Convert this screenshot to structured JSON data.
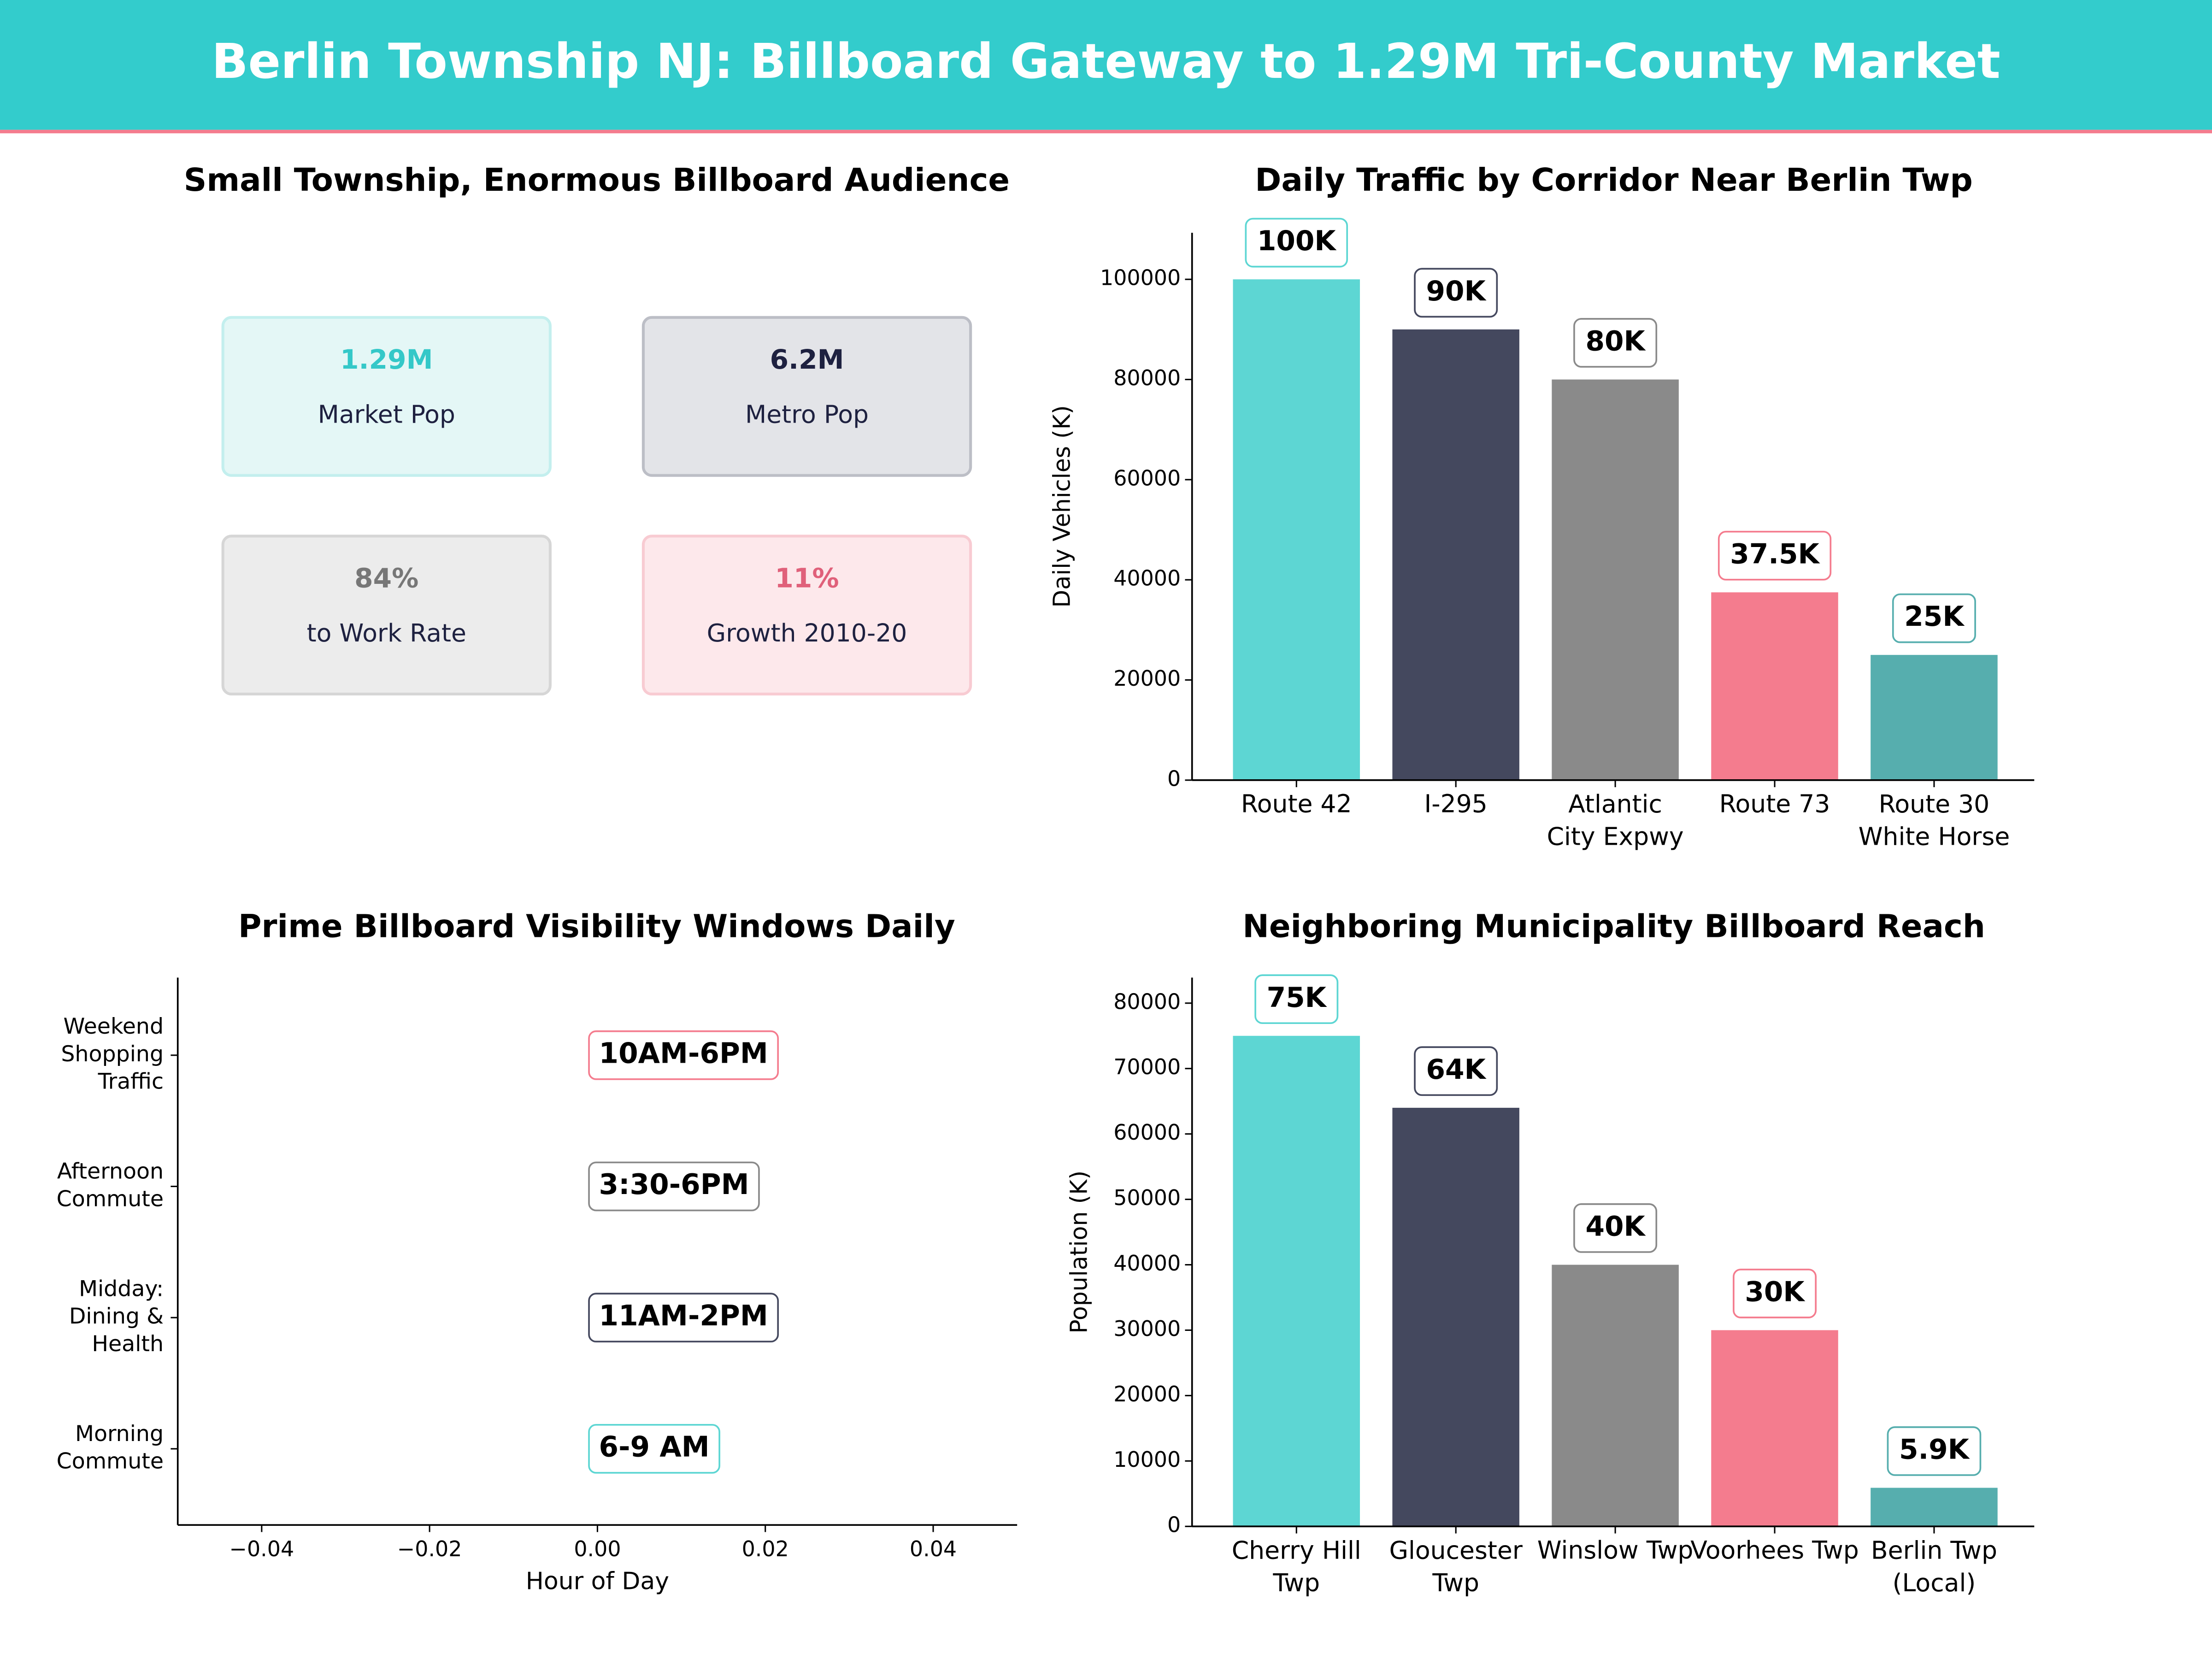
{
  "header": {
    "title": "Berlin Township NJ: Billboard Gateway to 1.29M Tri-County Market"
  },
  "chart_data": [
    {
      "type": "kpi",
      "title": "Small Township, Enormous Billboard Audience",
      "cards": [
        {
          "value": "1.29M",
          "label": "Market Pop",
          "color": "#34c8c8",
          "background": "#e4f7f6",
          "border": "#c3efee"
        },
        {
          "value": "6.2M",
          "label": "Metro Pop",
          "color": "#1e2140",
          "background": "#e3e4e8",
          "border": "#bcbec6"
        },
        {
          "value": "84%",
          "label": "to Work Rate",
          "color": "#777777",
          "background": "#ececec",
          "border": "#d6d6d6"
        },
        {
          "value": "11%",
          "label": "Growth 2010-20",
          "color": "#e0607a",
          "background": "#fde8eb",
          "border": "#f8cbd2"
        }
      ]
    },
    {
      "type": "bar",
      "title": "Daily Traffic by Corridor Near Berlin Twp",
      "ylabel": "Daily Vehicles (K)",
      "categories": [
        "Route 42",
        "I-295",
        "Atlantic\nCity Expwy",
        "Route 73",
        "Route 30\nWhite Horse"
      ],
      "values": [
        100000,
        90000,
        80000,
        37500,
        25000
      ],
      "value_labels": [
        "100K",
        "90K",
        "80K",
        "37.5K",
        "25K"
      ],
      "colors": [
        "#5dd6d3",
        "#44485e",
        "#8a8a8a",
        "#f47c8e",
        "#56aeae"
      ],
      "ylim": [
        0,
        109300
      ],
      "yticks": [
        0,
        20000,
        40000,
        60000,
        80000,
        100000
      ]
    },
    {
      "type": "hbar",
      "title": "Prime Billboard Visibility Windows Daily",
      "xlabel": "Hour of Day",
      "categories": [
        "Morning\nCommute",
        "Midday:\nDining &\nHealth",
        "Afternoon\nCommute",
        "Weekend\nShopping\nTraffic"
      ],
      "values": [
        0,
        0,
        0,
        0
      ],
      "annotations": [
        "6-9 AM",
        "11AM-2PM",
        "3:30-6PM",
        "10AM-6PM"
      ],
      "colors": [
        "#5dd6d3",
        "#44485e",
        "#8a8a8a",
        "#f47c8e"
      ],
      "xlim": [
        -0.05,
        0.05
      ],
      "xticks": [
        {
          "value": -0.04,
          "label": "−0.04"
        },
        {
          "value": -0.02,
          "label": "−0.02"
        },
        {
          "value": 0,
          "label": "0.00"
        },
        0.02,
        0.04
      ]
    },
    {
      "type": "bar",
      "title": "Neighboring Municipality Billboard Reach",
      "ylabel": "Population (K)",
      "categories": [
        "Cherry Hill\nTwp",
        "Gloucester\nTwp",
        "Winslow Twp",
        "Voorhees Twp",
        "Berlin Twp\n(Local)"
      ],
      "values": [
        75000,
        64000,
        40000,
        30000,
        5900
      ],
      "value_labels": [
        "75K",
        "64K",
        "40K",
        "30K",
        "5.9K"
      ],
      "colors": [
        "#5dd6d3",
        "#44485e",
        "#8a8a8a",
        "#f47c8e",
        "#56aeae"
      ],
      "ylim": [
        0,
        83900
      ],
      "yticks": [
        0,
        10000,
        20000,
        30000,
        40000,
        50000,
        60000,
        70000,
        80000
      ]
    }
  ]
}
